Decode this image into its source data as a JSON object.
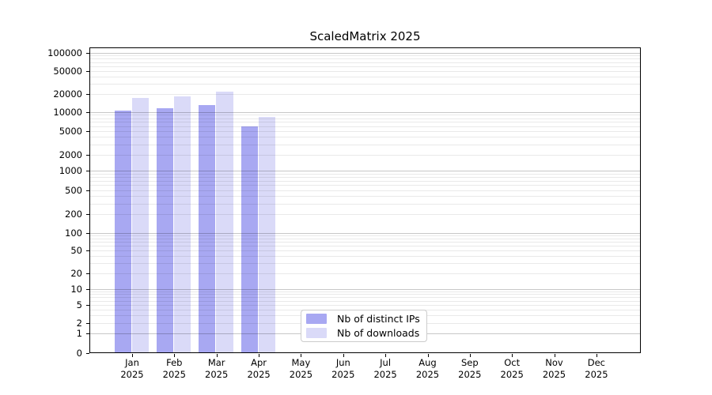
{
  "title": "ScaledMatrix 2025",
  "colors": {
    "distinct_ips_bar": "#a8a8f2",
    "downloads_bar": "#dadaf8",
    "major_grid": "#c4c4c4",
    "minor_grid": "#e9e9e9",
    "axis": "#000000",
    "legend_border": "#cccccc"
  },
  "legend": {
    "position": "lower center",
    "items": [
      {
        "label": "Nb of distinct IPs",
        "color": "#a8a8f2"
      },
      {
        "label": "Nb of downloads",
        "color": "#dadaf8"
      }
    ]
  },
  "x_axis": {
    "categories": [
      {
        "month": "Jan",
        "year": "2025"
      },
      {
        "month": "Feb",
        "year": "2025"
      },
      {
        "month": "Mar",
        "year": "2025"
      },
      {
        "month": "Apr",
        "year": "2025"
      },
      {
        "month": "May",
        "year": "2025"
      },
      {
        "month": "Jun",
        "year": "2025"
      },
      {
        "month": "Jul",
        "year": "2025"
      },
      {
        "month": "Aug",
        "year": "2025"
      },
      {
        "month": "Sep",
        "year": "2025"
      },
      {
        "month": "Oct",
        "year": "2025"
      },
      {
        "month": "Nov",
        "year": "2025"
      },
      {
        "month": "Dec",
        "year": "2025"
      }
    ]
  },
  "y_axis": {
    "scale": "symlog",
    "tick_values": [
      0,
      1,
      2,
      5,
      10,
      20,
      50,
      100,
      200,
      500,
      1000,
      2000,
      5000,
      10000,
      20000,
      50000,
      100000
    ]
  },
  "chart_data": {
    "type": "bar",
    "title": "ScaledMatrix 2025",
    "categories": [
      "Jan 2025",
      "Feb 2025",
      "Mar 2025",
      "Apr 2025",
      "May 2025",
      "Jun 2025",
      "Jul 2025",
      "Aug 2025",
      "Sep 2025",
      "Oct 2025",
      "Nov 2025",
      "Dec 2025"
    ],
    "series": [
      {
        "name": "Nb of distinct IPs",
        "color": "#a8a8f2",
        "values": [
          10600,
          11600,
          13200,
          5950,
          0,
          0,
          0,
          0,
          0,
          0,
          0,
          0
        ]
      },
      {
        "name": "Nb of downloads",
        "color": "#dadaf8",
        "values": [
          17300,
          18200,
          22000,
          8300,
          0,
          0,
          0,
          0,
          0,
          0,
          0,
          0
        ]
      }
    ],
    "xlabel": "",
    "ylabel": "",
    "yscale": "symlog",
    "yticks": [
      0,
      1,
      2,
      5,
      10,
      20,
      50,
      100,
      200,
      500,
      1000,
      2000,
      5000,
      10000,
      20000,
      50000,
      100000
    ],
    "ylim": [
      0,
      122000
    ],
    "grid": true,
    "legend_position": "lower center"
  }
}
